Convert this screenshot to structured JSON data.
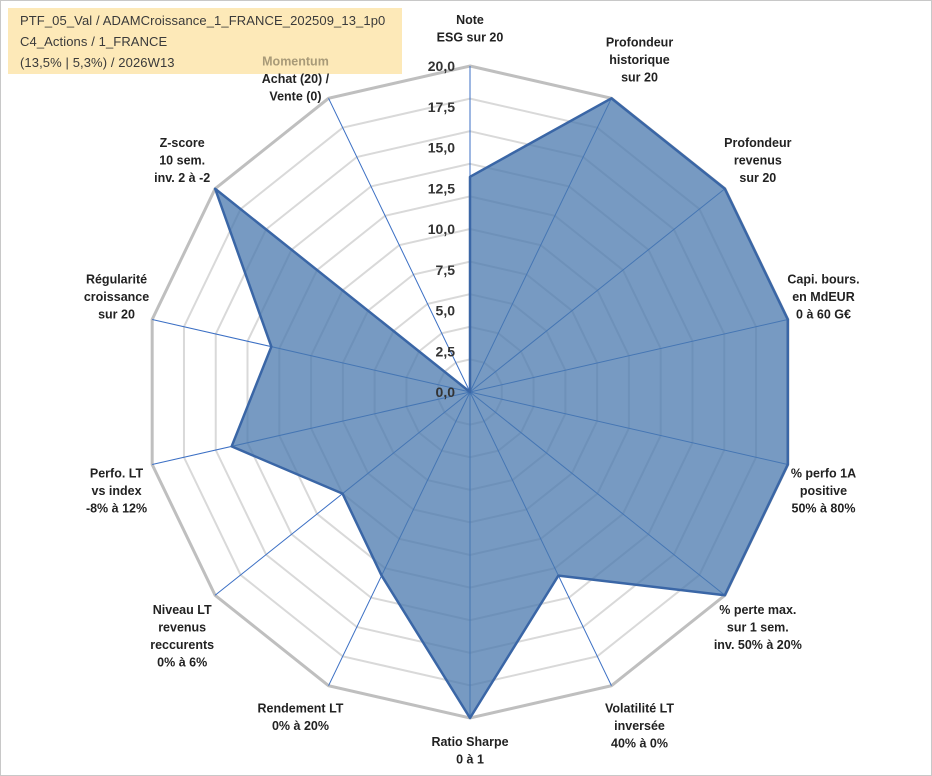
{
  "header": {
    "line1": "PTF_05_Val / ADAMCroissance_1_FRANCE_202509_13_1p0",
    "line2": "C4_Actions / 1_FRANCE",
    "line3": "(13,5% | 5,3%) / 2026W13"
  },
  "chart_data": {
    "type": "radar",
    "title": "",
    "rmin": 0,
    "rmax": 20,
    "tick_values": [
      0,
      2.5,
      5,
      7.5,
      10,
      12.5,
      15,
      17.5,
      20
    ],
    "tick_labels": [
      "0,0",
      "2,5",
      "5,0",
      "7,5",
      "10,0",
      "12,5",
      "15,0",
      "17,5",
      "20,0"
    ],
    "series_color": "#4a78ad",
    "axes": [
      {
        "lines": [
          "Note",
          "ESG sur 20"
        ],
        "value": 13.2
      },
      {
        "lines": [
          "Profondeur",
          "historique",
          "sur 20"
        ],
        "value": 20
      },
      {
        "lines": [
          "Profondeur",
          "revenus",
          "sur 20"
        ],
        "value": 20
      },
      {
        "lines": [
          "Capi. bours.",
          "en MdEUR",
          "0 à 60 G€"
        ],
        "value": 20
      },
      {
        "lines": [
          "% perfo 1A",
          "positive",
          "50% à 80%"
        ],
        "value": 20
      },
      {
        "lines": [
          "% perte max.",
          "sur 1 sem.",
          "inv. 50% à 20%"
        ],
        "value": 20
      },
      {
        "lines": [
          "Volatilité LT",
          "inversée",
          "40% à 0%"
        ],
        "value": 12.5
      },
      {
        "lines": [
          "Ratio Sharpe",
          "0 à 1"
        ],
        "value": 20
      },
      {
        "lines": [
          "Rendement LT",
          "0% à 20%"
        ],
        "value": 12.5
      },
      {
        "lines": [
          "Niveau LT",
          "revenus",
          "reccurents",
          "0% à 6%"
        ],
        "value": 10
      },
      {
        "lines": [
          "Perfo. LT",
          "vs index",
          "-8% à 12%"
        ],
        "value": 15
      },
      {
        "lines": [
          "Régularité",
          "croissance",
          "sur 20"
        ],
        "value": 12.5
      },
      {
        "lines": [
          "Z-score",
          "10 sem.",
          "inv. 2 à -2"
        ],
        "value": 20
      },
      {
        "lines": [
          "Momentum",
          "Achat (20) /",
          "Vente (0)"
        ],
        "value": 0
      }
    ]
  }
}
